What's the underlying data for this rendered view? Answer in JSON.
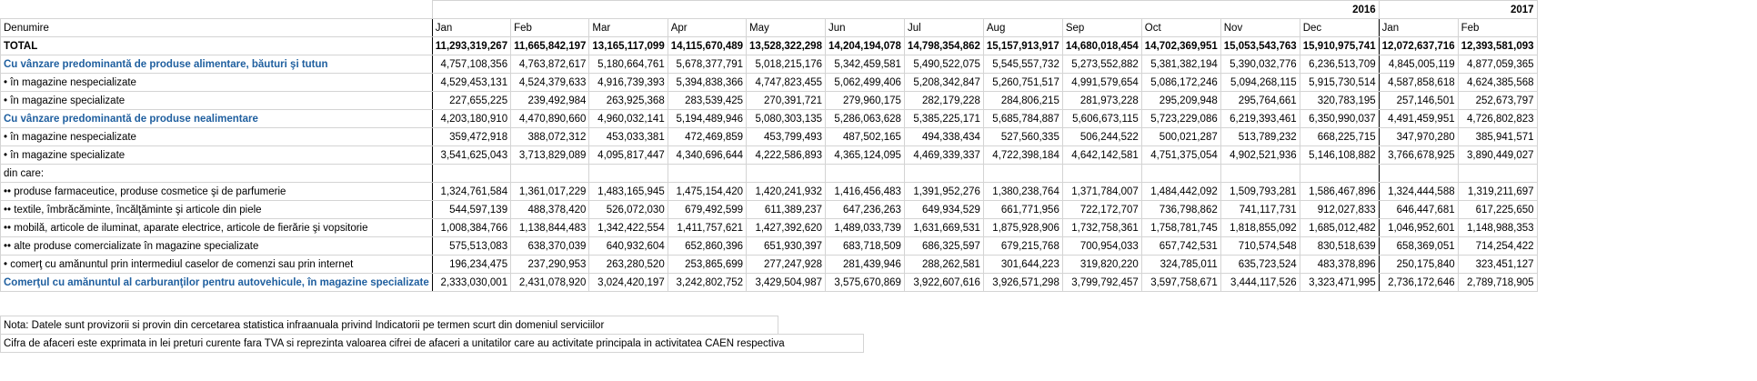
{
  "table": {
    "corner_label": "Denumire",
    "years": [
      {
        "label": "2016",
        "span": 12
      },
      {
        "label": "2017",
        "span": 2
      }
    ],
    "months": [
      "Jan",
      "Feb",
      "Mar",
      "Apr",
      "May",
      "Jun",
      "Jul",
      "Aug",
      "Sep",
      "Oct",
      "Nov",
      "Dec",
      "Jan",
      "Feb"
    ],
    "rows": [
      {
        "label": "TOTAL",
        "style": "total",
        "values": [
          "11,293,319,267",
          "11,665,842,197",
          "13,165,117,099",
          "14,115,670,489",
          "13,528,322,298",
          "14,204,194,078",
          "14,798,354,862",
          "15,157,913,917",
          "14,680,018,454",
          "14,702,369,951",
          "15,053,543,763",
          "15,910,975,741",
          "12,072,637,716",
          "12,393,581,093"
        ]
      },
      {
        "label": "Cu vânzare predominantă de produse alimentare, băuturi şi tutun",
        "style": "cat",
        "values": [
          "4,757,108,356",
          "4,763,872,617",
          "5,180,664,761",
          "5,678,377,791",
          "5,018,215,176",
          "5,342,459,581",
          "5,490,522,075",
          "5,545,557,732",
          "5,273,552,882",
          "5,381,382,194",
          "5,390,032,776",
          "6,236,513,709",
          "4,845,005,119",
          "4,877,059,365"
        ]
      },
      {
        "label": "• în magazine nespecializate",
        "style": "sub",
        "values": [
          "4,529,453,131",
          "4,524,379,633",
          "4,916,739,393",
          "5,394,838,366",
          "4,747,823,455",
          "5,062,499,406",
          "5,208,342,847",
          "5,260,751,517",
          "4,991,579,654",
          "5,086,172,246",
          "5,094,268,115",
          "5,915,730,514",
          "4,587,858,618",
          "4,624,385,568"
        ]
      },
      {
        "label": "• în magazine specializate",
        "style": "sub",
        "values": [
          "227,655,225",
          "239,492,984",
          "263,925,368",
          "283,539,425",
          "270,391,721",
          "279,960,175",
          "282,179,228",
          "284,806,215",
          "281,973,228",
          "295,209,948",
          "295,764,661",
          "320,783,195",
          "257,146,501",
          "252,673,797"
        ]
      },
      {
        "label": "Cu vânzare predominantă de produse nealimentare",
        "style": "cat",
        "values": [
          "4,203,180,910",
          "4,470,890,660",
          "4,960,032,141",
          "5,194,489,946",
          "5,080,303,135",
          "5,286,063,628",
          "5,385,225,171",
          "5,685,784,887",
          "5,606,673,115",
          "5,723,229,086",
          "6,219,393,461",
          "6,350,990,037",
          "4,491,459,951",
          "4,726,802,823"
        ]
      },
      {
        "label": "• în magazine nespecializate",
        "style": "sub",
        "values": [
          "359,472,918",
          "388,072,312",
          "453,033,381",
          "472,469,859",
          "453,799,493",
          "487,502,165",
          "494,338,434",
          "527,560,335",
          "506,244,522",
          "500,021,287",
          "513,789,232",
          "668,225,715",
          "347,970,280",
          "385,941,571"
        ]
      },
      {
        "label": "• în magazine specializate",
        "style": "sub",
        "values": [
          "3,541,625,043",
          "3,713,829,089",
          "4,095,817,447",
          "4,340,696,644",
          "4,222,586,893",
          "4,365,124,095",
          "4,469,339,337",
          "4,722,398,184",
          "4,642,142,581",
          "4,751,375,054",
          "4,902,521,936",
          "5,146,108,882",
          "3,766,678,925",
          "3,890,449,027"
        ]
      },
      {
        "label": "din care:",
        "style": "indent1",
        "values": [
          "",
          "",
          "",
          "",
          "",
          "",
          "",
          "",
          "",
          "",
          "",
          "",
          "",
          ""
        ]
      },
      {
        "label": "•• produse farmaceutice,  produse cosmetice şi de parfumerie",
        "style": "indent2",
        "values": [
          "1,324,761,584",
          "1,361,017,229",
          "1,483,165,945",
          "1,475,154,420",
          "1,420,241,932",
          "1,416,456,483",
          "1,391,952,276",
          "1,380,238,764",
          "1,371,784,007",
          "1,484,442,092",
          "1,509,793,281",
          "1,586,467,896",
          "1,324,444,588",
          "1,319,211,697"
        ]
      },
      {
        "label": "••  textile, îmbrăcăminte, încălţăminte şi  articole din piele",
        "style": "indent2",
        "values": [
          "544,597,139",
          "488,378,420",
          "526,072,030",
          "679,492,599",
          "611,389,237",
          "647,236,263",
          "649,934,529",
          "661,771,956",
          "722,172,707",
          "736,798,862",
          "741,117,731",
          "912,027,833",
          "646,447,681",
          "617,225,650"
        ]
      },
      {
        "label": "••  mobilă, articole de iluminat, aparate electrice, articole de fierărie şi  vopsitorie",
        "style": "indent2",
        "values": [
          "1,008,384,766",
          "1,138,844,483",
          "1,342,422,554",
          "1,411,757,621",
          "1,427,392,620",
          "1,489,033,739",
          "1,631,669,531",
          "1,875,928,906",
          "1,732,758,361",
          "1,758,781,745",
          "1,818,855,092",
          "1,685,012,482",
          "1,046,952,601",
          "1,148,988,353"
        ]
      },
      {
        "label": "••  alte produse comercializate  în magazine specializate",
        "style": "indent2",
        "values": [
          "575,513,083",
          "638,370,039",
          "640,932,604",
          "652,860,396",
          "651,930,397",
          "683,718,509",
          "686,325,597",
          "679,215,768",
          "700,954,033",
          "657,742,531",
          "710,574,548",
          "830,518,639",
          "658,369,051",
          "714,254,422"
        ]
      },
      {
        "label": "• comerţ cu amănuntul prin intermediul   caselor de comenzi sau prin internet",
        "style": "sub",
        "values": [
          "196,234,475",
          "237,290,953",
          "263,280,520",
          "253,865,699",
          "277,247,928",
          "281,439,946",
          "288,262,581",
          "301,644,223",
          "319,820,220",
          "324,785,011",
          "635,723,524",
          "483,378,896",
          "250,175,840",
          "323,451,127"
        ]
      },
      {
        "label": "Comerţul cu amănuntul al carburanţilor pentru autovehicule, în magazine specializate",
        "style": "cat",
        "values": [
          "2,333,030,001",
          "2,431,078,920",
          "3,024,420,197",
          "3,242,802,752",
          "3,429,504,987",
          "3,575,670,869",
          "3,922,607,616",
          "3,926,571,298",
          "3,799,792,457",
          "3,597,758,671",
          "3,444,117,526",
          "3,323,471,995",
          "2,736,172,646",
          "2,789,718,905"
        ]
      }
    ]
  },
  "notes": [
    "Nota: Datele sunt provizorii si provin din cercetarea statistica infraanuala privind Indicatorii pe termen scurt din domeniul serviciilor",
    "Cifra de afaceri este exprimata in lei preturi curente fara TVA si reprezinta valoarea  cifrei de afaceri a unitatilor care au activitate principala in activitatea CAEN respectiva"
  ]
}
